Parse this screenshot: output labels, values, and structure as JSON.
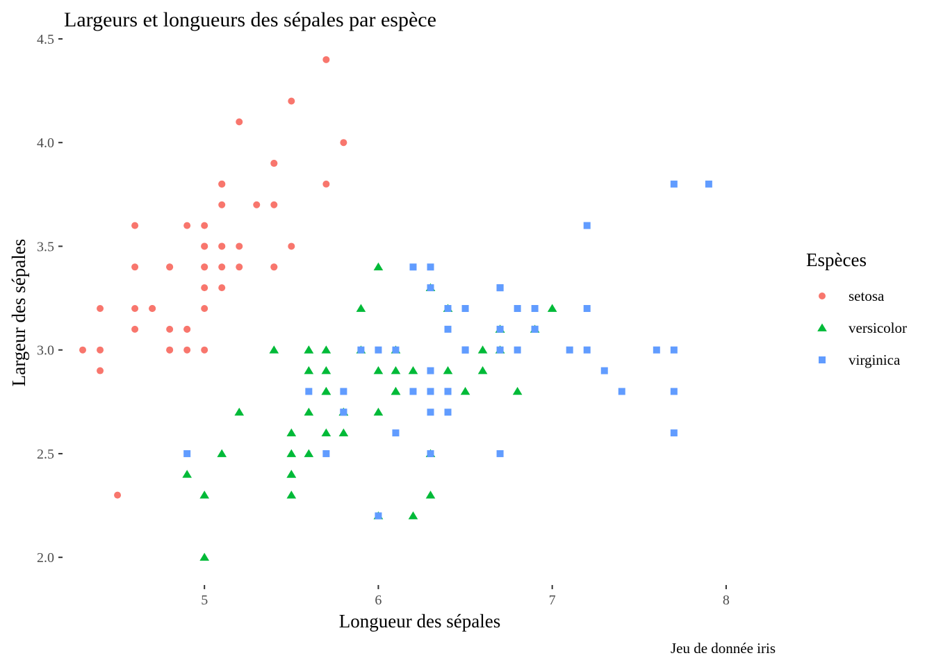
{
  "chart_data": {
    "type": "scatter",
    "title": "Largeurs et longueurs des sépales par espèce",
    "xlabel": "Longueur des sépales",
    "ylabel": "Largeur des sépales",
    "caption": "Jeu de donnée iris",
    "xlim": [
      4.2,
      8.4
    ],
    "ylim": [
      1.88,
      4.52
    ],
    "xticks": [
      5,
      6,
      7,
      8
    ],
    "xtick_labels": [
      "5",
      "6",
      "7",
      "8"
    ],
    "yticks": [
      2.0,
      2.5,
      3.0,
      3.5,
      4.0,
      4.5
    ],
    "ytick_labels": [
      "2.0",
      "2.5",
      "3.0",
      "3.5",
      "4.0",
      "4.5"
    ],
    "grid": false,
    "legend": {
      "title": "Espèces",
      "position": "right"
    },
    "series": [
      {
        "name": "setosa",
        "color": "#F8766D",
        "shape": "circle",
        "points": [
          [
            5.1,
            3.5
          ],
          [
            4.9,
            3.0
          ],
          [
            4.7,
            3.2
          ],
          [
            4.6,
            3.1
          ],
          [
            5.0,
            3.6
          ],
          [
            5.4,
            3.9
          ],
          [
            4.6,
            3.4
          ],
          [
            5.0,
            3.4
          ],
          [
            4.4,
            2.9
          ],
          [
            4.9,
            3.1
          ],
          [
            5.4,
            3.7
          ],
          [
            4.8,
            3.4
          ],
          [
            4.8,
            3.0
          ],
          [
            4.3,
            3.0
          ],
          [
            5.8,
            4.0
          ],
          [
            5.7,
            4.4
          ],
          [
            5.4,
            3.9
          ],
          [
            5.1,
            3.5
          ],
          [
            5.7,
            3.8
          ],
          [
            5.1,
            3.8
          ],
          [
            5.4,
            3.4
          ],
          [
            5.1,
            3.7
          ],
          [
            4.6,
            3.6
          ],
          [
            5.1,
            3.3
          ],
          [
            4.8,
            3.4
          ],
          [
            5.0,
            3.0
          ],
          [
            5.0,
            3.4
          ],
          [
            5.2,
            3.5
          ],
          [
            5.2,
            3.4
          ],
          [
            4.7,
            3.2
          ],
          [
            4.8,
            3.1
          ],
          [
            5.4,
            3.4
          ],
          [
            5.2,
            4.1
          ],
          [
            5.5,
            4.2
          ],
          [
            4.9,
            3.1
          ],
          [
            5.0,
            3.2
          ],
          [
            5.5,
            3.5
          ],
          [
            4.9,
            3.6
          ],
          [
            4.4,
            3.0
          ],
          [
            5.1,
            3.4
          ],
          [
            5.0,
            3.5
          ],
          [
            4.5,
            2.3
          ],
          [
            4.4,
            3.2
          ],
          [
            5.0,
            3.5
          ],
          [
            5.1,
            3.8
          ],
          [
            4.8,
            3.0
          ],
          [
            5.1,
            3.8
          ],
          [
            4.6,
            3.2
          ],
          [
            5.3,
            3.7
          ],
          [
            5.0,
            3.3
          ]
        ]
      },
      {
        "name": "versicolor",
        "color": "#00BA38",
        "shape": "triangle",
        "points": [
          [
            7.0,
            3.2
          ],
          [
            6.4,
            3.2
          ],
          [
            6.9,
            3.1
          ],
          [
            5.5,
            2.3
          ],
          [
            6.5,
            2.8
          ],
          [
            5.7,
            2.8
          ],
          [
            6.3,
            3.3
          ],
          [
            4.9,
            2.4
          ],
          [
            6.6,
            2.9
          ],
          [
            5.2,
            2.7
          ],
          [
            5.0,
            2.0
          ],
          [
            5.9,
            3.0
          ],
          [
            6.0,
            2.2
          ],
          [
            6.1,
            2.9
          ],
          [
            5.6,
            2.9
          ],
          [
            6.7,
            3.1
          ],
          [
            5.6,
            3.0
          ],
          [
            5.8,
            2.7
          ],
          [
            6.2,
            2.2
          ],
          [
            5.6,
            2.5
          ],
          [
            5.9,
            3.2
          ],
          [
            6.1,
            2.8
          ],
          [
            6.3,
            2.5
          ],
          [
            6.1,
            2.8
          ],
          [
            6.4,
            2.9
          ],
          [
            6.6,
            3.0
          ],
          [
            6.8,
            2.8
          ],
          [
            6.7,
            3.0
          ],
          [
            6.0,
            2.9
          ],
          [
            5.7,
            2.6
          ],
          [
            5.5,
            2.4
          ],
          [
            5.5,
            2.4
          ],
          [
            5.8,
            2.7
          ],
          [
            6.0,
            2.7
          ],
          [
            5.4,
            3.0
          ],
          [
            6.0,
            3.4
          ],
          [
            6.7,
            3.1
          ],
          [
            6.3,
            2.3
          ],
          [
            5.6,
            3.0
          ],
          [
            5.5,
            2.5
          ],
          [
            5.5,
            2.6
          ],
          [
            6.1,
            3.0
          ],
          [
            5.8,
            2.6
          ],
          [
            5.0,
            2.3
          ],
          [
            5.6,
            2.7
          ],
          [
            5.7,
            3.0
          ],
          [
            5.7,
            2.9
          ],
          [
            6.2,
            2.9
          ],
          [
            5.1,
            2.5
          ],
          [
            5.7,
            2.8
          ]
        ]
      },
      {
        "name": "virginica",
        "color": "#619CFF",
        "shape": "square",
        "points": [
          [
            6.3,
            3.3
          ],
          [
            5.8,
            2.7
          ],
          [
            7.1,
            3.0
          ],
          [
            6.3,
            2.9
          ],
          [
            6.5,
            3.0
          ],
          [
            7.6,
            3.0
          ],
          [
            4.9,
            2.5
          ],
          [
            7.3,
            2.9
          ],
          [
            6.7,
            2.5
          ],
          [
            7.2,
            3.6
          ],
          [
            6.5,
            3.2
          ],
          [
            6.4,
            2.7
          ],
          [
            6.8,
            3.0
          ],
          [
            5.7,
            2.5
          ],
          [
            5.8,
            2.8
          ],
          [
            6.4,
            3.2
          ],
          [
            6.5,
            3.0
          ],
          [
            7.7,
            3.8
          ],
          [
            7.7,
            2.6
          ],
          [
            6.0,
            2.2
          ],
          [
            6.9,
            3.2
          ],
          [
            5.6,
            2.8
          ],
          [
            7.7,
            2.8
          ],
          [
            6.3,
            2.7
          ],
          [
            6.7,
            3.3
          ],
          [
            7.2,
            3.2
          ],
          [
            6.2,
            2.8
          ],
          [
            6.1,
            3.0
          ],
          [
            6.4,
            2.8
          ],
          [
            7.2,
            3.0
          ],
          [
            7.4,
            2.8
          ],
          [
            7.9,
            3.8
          ],
          [
            6.4,
            2.8
          ],
          [
            6.3,
            2.8
          ],
          [
            6.1,
            2.6
          ],
          [
            7.7,
            3.0
          ],
          [
            6.3,
            3.4
          ],
          [
            6.4,
            3.1
          ],
          [
            6.0,
            3.0
          ],
          [
            6.9,
            3.1
          ],
          [
            6.7,
            3.1
          ],
          [
            6.9,
            3.1
          ],
          [
            5.8,
            2.7
          ],
          [
            6.8,
            3.2
          ],
          [
            6.7,
            3.3
          ],
          [
            6.7,
            3.0
          ],
          [
            6.3,
            2.5
          ],
          [
            6.5,
            3.0
          ],
          [
            6.2,
            3.4
          ],
          [
            5.9,
            3.0
          ]
        ]
      }
    ]
  }
}
